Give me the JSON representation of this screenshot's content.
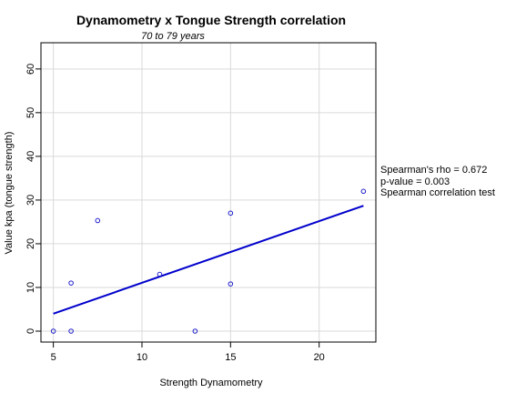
{
  "chart_data": {
    "type": "scatter",
    "title": "Dynamometry x Tongue Strength correlation",
    "subtitle": "70 to 79 years",
    "xlabel": "Strength Dynamometry",
    "ylabel": "Value kpa (tongue strength)",
    "xlim": [
      4.3,
      23.2
    ],
    "ylim": [
      -2.5,
      66
    ],
    "x_ticks": [
      5,
      10,
      15,
      20
    ],
    "y_ticks": [
      0,
      10,
      20,
      30,
      40,
      50,
      60
    ],
    "grid": true,
    "points": [
      {
        "x": 5,
        "y": 0
      },
      {
        "x": 6,
        "y": 0
      },
      {
        "x": 6,
        "y": 11
      },
      {
        "x": 7.5,
        "y": 25.3
      },
      {
        "x": 11,
        "y": 13
      },
      {
        "x": 13,
        "y": 0
      },
      {
        "x": 15,
        "y": 27
      },
      {
        "x": 15,
        "y": 10.8
      },
      {
        "x": 22.5,
        "y": 32
      }
    ],
    "point_color": "#2020cc",
    "fit_line": {
      "x": [
        5,
        22.5
      ],
      "y": [
        4,
        28.7
      ],
      "color": "#0000cc"
    },
    "annotations": [
      "Spearman's rho = 0.672",
      "p-value = 0.003",
      "Spearman correlation test"
    ]
  }
}
